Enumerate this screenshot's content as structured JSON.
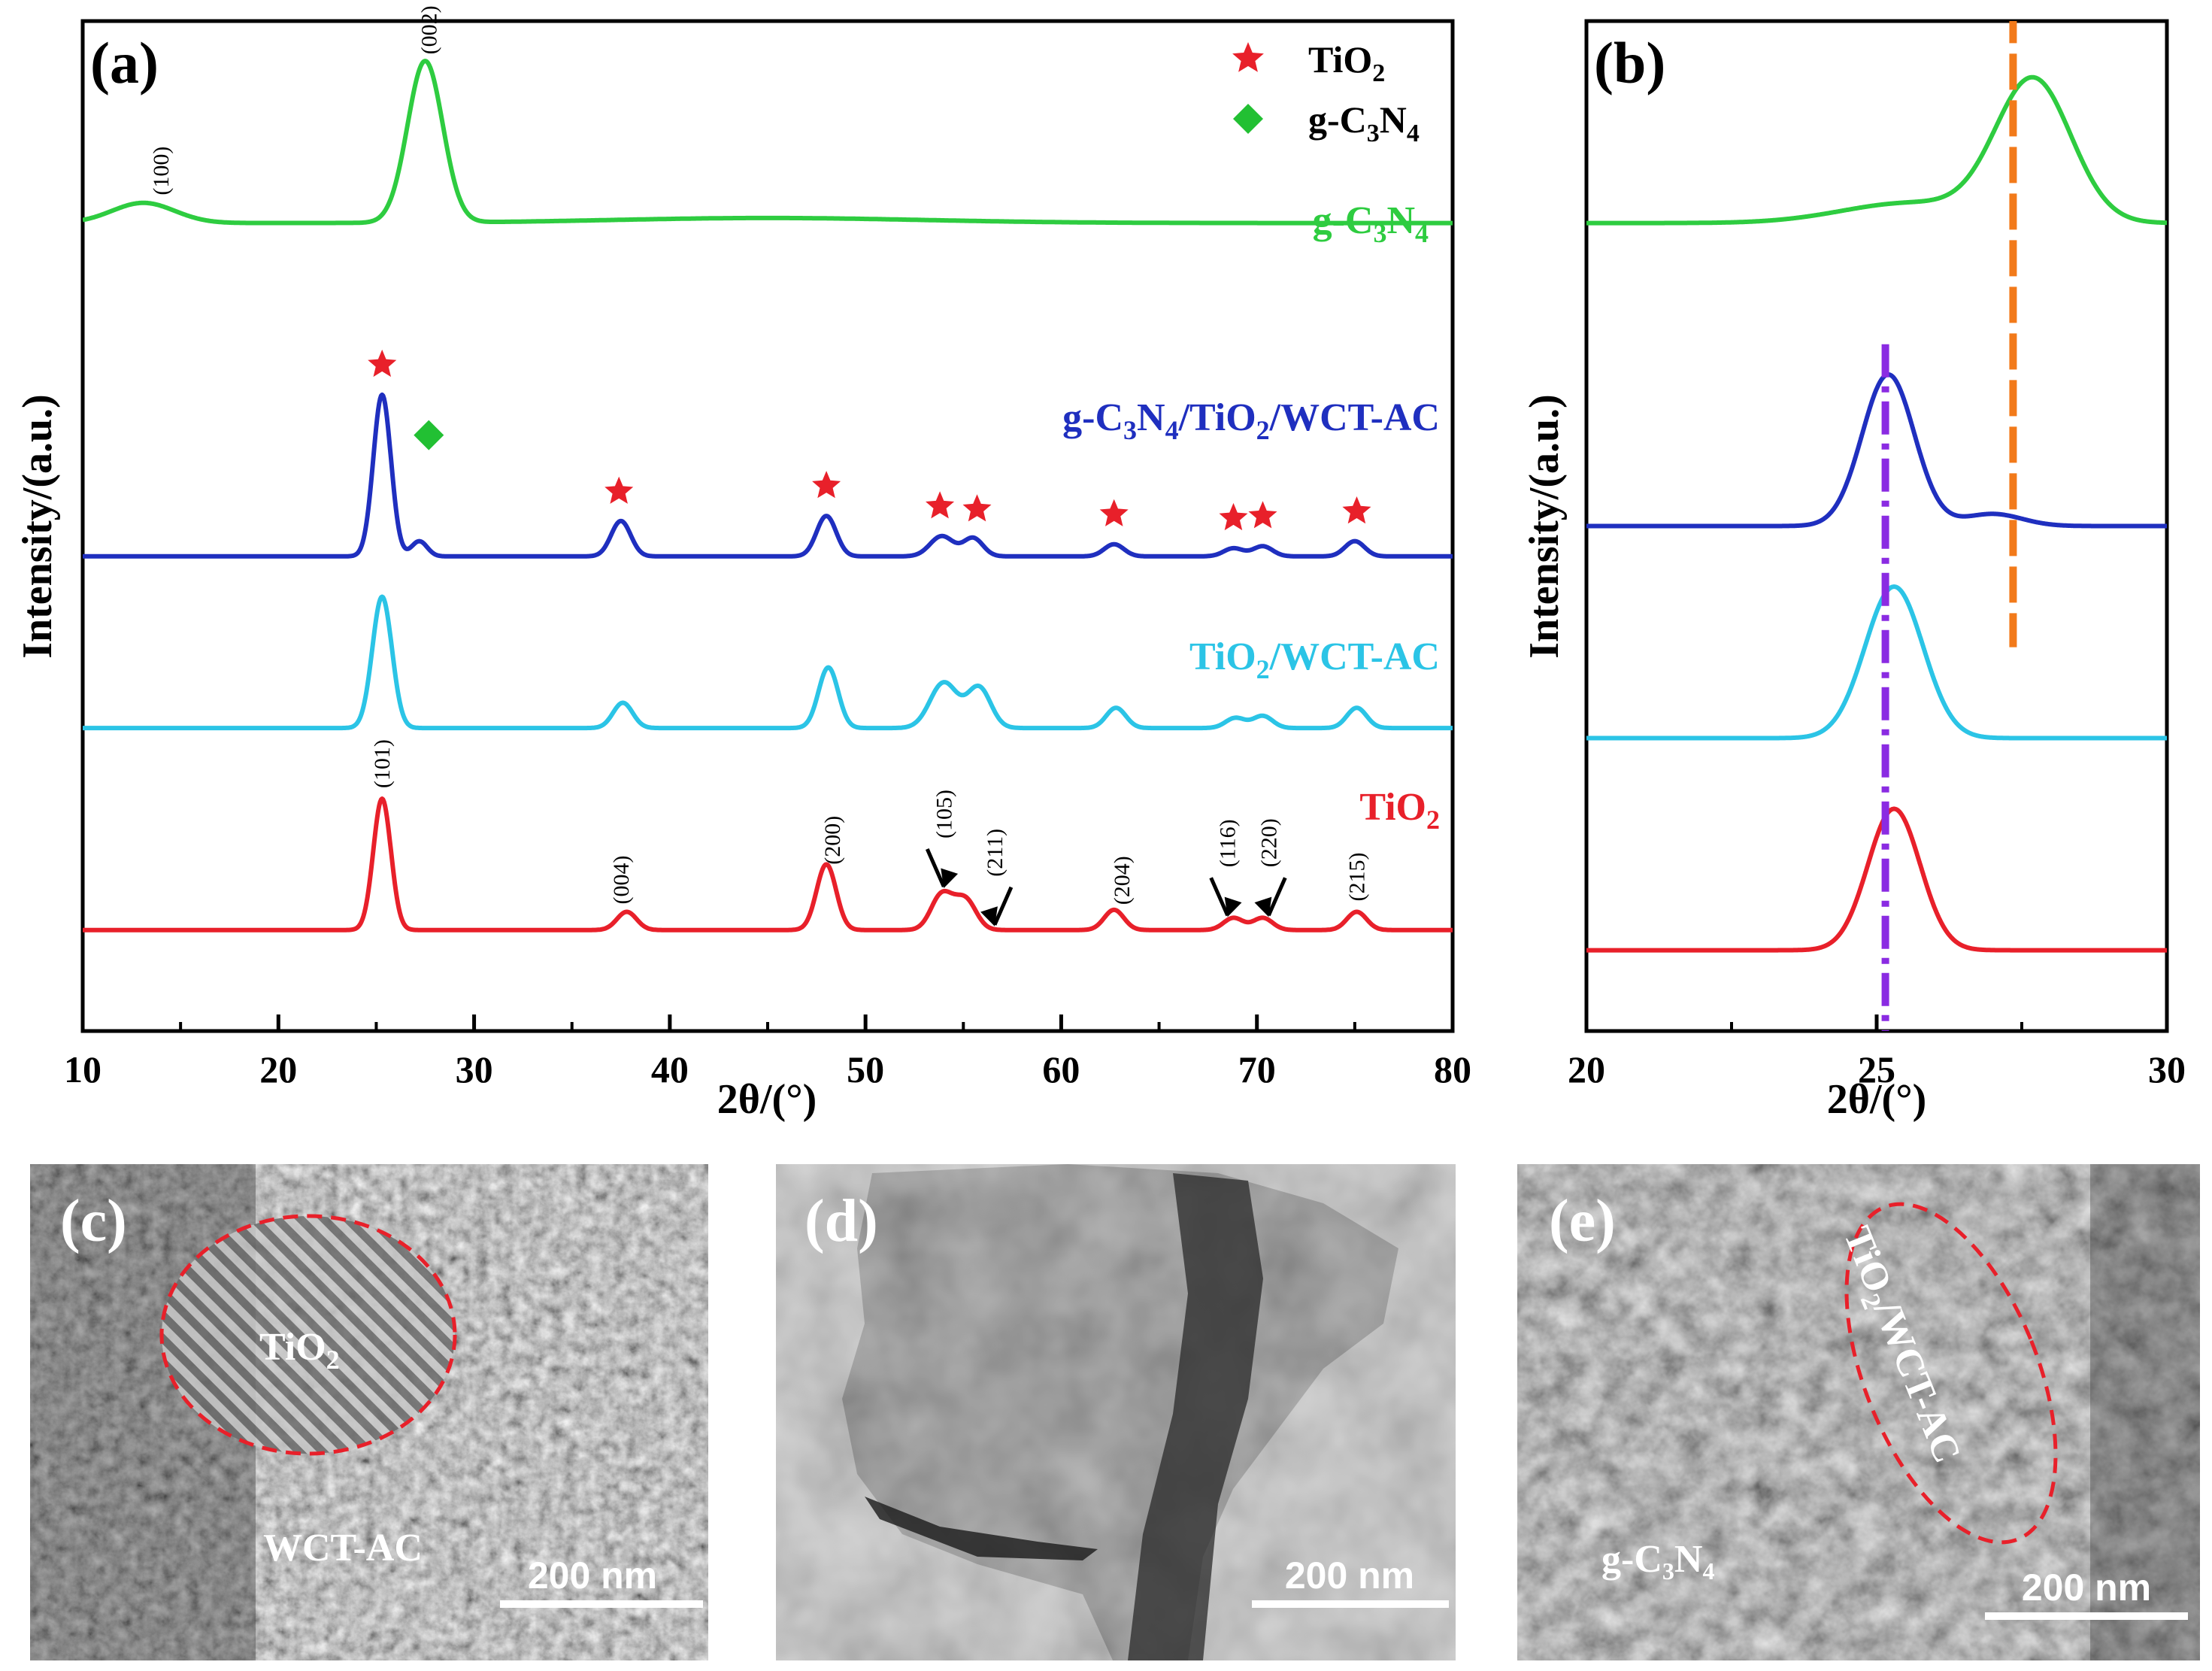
{
  "colors": {
    "gcn": "#2ecc40",
    "comp": "#1f2fbf",
    "tiwct": "#2bc4e6",
    "tio2": "#e8202a",
    "star": "#e8202a",
    "diamond": "#22c033",
    "orange": "#f27a1a",
    "purple": "#8a2be2",
    "ellipse": "#e8202a"
  },
  "panel_a": {
    "label": "(a)",
    "xlabel": "2θ/(°)",
    "ylabel": "Intensity/(a.u.)",
    "legend": [
      {
        "symbol": "star-icon",
        "base": "TiO",
        "sub": "2"
      },
      {
        "symbol": "diamond-icon",
        "base": "g-C",
        "sub": "3",
        "mid": "N",
        "sub2": "4"
      }
    ],
    "series_labels": {
      "gcn": "g-C3N4",
      "comp": "g-C3N4/TiO2/WCT-AC",
      "tiwct": "TiO2/WCT-AC",
      "tio2": "TiO2"
    },
    "hkl_gcn": [
      "(100)",
      "(002)"
    ],
    "hkl_tio2": [
      "(101)",
      "(004)",
      "(200)",
      "(105)",
      "(211)",
      "(204)",
      "(116)",
      "(220)",
      "(215)"
    ]
  },
  "panel_b": {
    "label": "(b)",
    "xlabel": "2θ/(°)",
    "ylabel": "Intensity/(a.u.)"
  },
  "chart_data": [
    {
      "type": "line",
      "title": "(a)",
      "xlabel": "2θ/(°)",
      "ylabel": "Intensity/(a.u.)",
      "xlim": [
        10,
        80
      ],
      "xticks": [
        10,
        20,
        30,
        40,
        50,
        60,
        70,
        80
      ],
      "series": [
        {
          "name": "g-C3N4",
          "key": "gcn",
          "offset": 0.78,
          "baseline": 0.02,
          "peaks": [
            [
              13.1,
              0.02,
              1.6
            ],
            [
              27.5,
              0.16,
              0.9
            ],
            [
              45,
              0.005,
              8
            ]
          ]
        },
        {
          "name": "g-C3N4/TiO2/WCT-AC",
          "key": "comp",
          "offset": 0.47,
          "baseline": 0.0,
          "peaks": [
            [
              25.3,
              0.16,
              0.45
            ],
            [
              27.2,
              0.015,
              0.4
            ],
            [
              37.5,
              0.035,
              0.5
            ],
            [
              48.0,
              0.04,
              0.5
            ],
            [
              53.9,
              0.02,
              0.6
            ],
            [
              55.5,
              0.018,
              0.5
            ],
            [
              62.7,
              0.012,
              0.5
            ],
            [
              68.8,
              0.008,
              0.5
            ],
            [
              70.3,
              0.01,
              0.5
            ],
            [
              75.0,
              0.015,
              0.5
            ]
          ]
        },
        {
          "name": "TiO2/WCT-AC",
          "key": "tiwct",
          "offset": 0.3,
          "baseline": 0.0,
          "peaks": [
            [
              25.3,
              0.13,
              0.5
            ],
            [
              37.6,
              0.025,
              0.5
            ],
            [
              48.1,
              0.06,
              0.5
            ],
            [
              54.0,
              0.045,
              0.7
            ],
            [
              55.8,
              0.04,
              0.6
            ],
            [
              62.8,
              0.02,
              0.5
            ],
            [
              68.9,
              0.01,
              0.5
            ],
            [
              70.3,
              0.012,
              0.5
            ],
            [
              75.1,
              0.02,
              0.5
            ]
          ]
        },
        {
          "name": "TiO2",
          "key": "tio2",
          "offset": 0.1,
          "baseline": 0.0,
          "peaks": [
            [
              25.3,
              0.13,
              0.45
            ],
            [
              37.8,
              0.018,
              0.5
            ],
            [
              48.0,
              0.065,
              0.5
            ],
            [
              53.9,
              0.035,
              0.55
            ],
            [
              55.1,
              0.03,
              0.55
            ],
            [
              62.7,
              0.02,
              0.5
            ],
            [
              68.8,
              0.012,
              0.5
            ],
            [
              70.3,
              0.012,
              0.5
            ],
            [
              75.1,
              0.018,
              0.5
            ]
          ]
        }
      ],
      "star_markers_deg": [
        25.3,
        37.4,
        48.0,
        53.8,
        55.7,
        62.7,
        68.8,
        70.3,
        75.1
      ],
      "diamond_marker_deg": [
        27.3
      ],
      "hkl_gcn_deg": [
        14.0,
        27.7
      ],
      "hkl_tio2_deg": [
        25.3,
        37.5,
        48.3,
        54.0,
        56.6,
        63.1,
        68.5,
        70.6,
        75.1
      ]
    },
    {
      "type": "line",
      "title": "(b)",
      "xlabel": "2θ/(°)",
      "ylabel": "Intensity/(a.u.)",
      "xlim": [
        20,
        30
      ],
      "xticks": [
        20,
        25,
        30
      ],
      "series": [
        {
          "name": "g-C3N4",
          "key": "gcn",
          "offset": 0.8,
          "baseline": 0.0,
          "peaks": [
            [
              27.7,
              0.14,
              0.65
            ],
            [
              25.6,
              0.02,
              1.2
            ]
          ]
        },
        {
          "name": "g-C3N4/TiO2/WCT-AC",
          "key": "comp",
          "offset": 0.5,
          "baseline": 0.0,
          "peaks": [
            [
              25.2,
              0.15,
              0.45
            ],
            [
              27.0,
              0.012,
              0.5
            ]
          ]
        },
        {
          "name": "TiO2/WCT-AC",
          "key": "tiwct",
          "offset": 0.29,
          "baseline": 0.0,
          "peaks": [
            [
              25.3,
              0.15,
              0.5
            ]
          ]
        },
        {
          "name": "TiO2",
          "key": "tio2",
          "offset": 0.08,
          "baseline": 0.0,
          "peaks": [
            [
              25.3,
              0.14,
              0.45
            ]
          ]
        }
      ],
      "vlines_deg": [
        {
          "x": 27.35,
          "color": "orange",
          "from": 0.38,
          "to": 1.06
        },
        {
          "x": 25.15,
          "color": "purple",
          "from": 0.0,
          "to": 0.68
        }
      ]
    }
  ],
  "tem": {
    "c": {
      "label": "(c)",
      "region1": "TiO2",
      "region2": "WCT-AC",
      "scale": "200 nm"
    },
    "d": {
      "label": "(d)",
      "scale": "200 nm"
    },
    "e": {
      "label": "(e)",
      "region1": "TiO2/WCT-AC",
      "region2": "g-C3N4",
      "scale": "200 nm"
    }
  }
}
